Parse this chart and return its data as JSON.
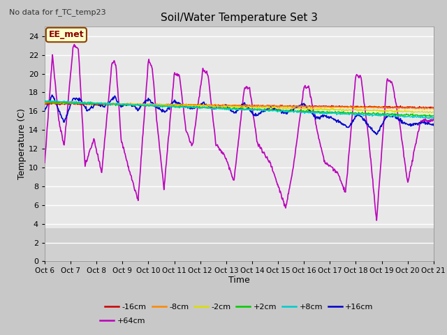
{
  "title": "Soil/Water Temperature Set 3",
  "no_data_text": "No data for f_TC_temp23",
  "xlabel": "Time",
  "ylabel": "Temperature (C)",
  "ylim": [
    0,
    25
  ],
  "yticks": [
    0,
    2,
    4,
    6,
    8,
    10,
    12,
    14,
    16,
    18,
    20,
    22,
    24
  ],
  "xlim": [
    0,
    15
  ],
  "xtick_labels": [
    "Oct 6",
    "Oct 7",
    "Oct 8",
    "Oct 9",
    "Oct 10",
    "Oct 11",
    "Oct 12",
    "Oct 13",
    "Oct 14",
    "Oct 15",
    "Oct 16",
    "Oct 17",
    "Oct 18",
    "Oct 19",
    "Oct 20",
    "Oct 21"
  ],
  "fig_bg_color": "#c8c8c8",
  "plot_bg_color": "#e8e8e8",
  "grid_color": "#ffffff",
  "legend_label_box": "EE_met",
  "series": [
    {
      "label": "-16cm",
      "color": "#cc0000"
    },
    {
      "label": "-8cm",
      "color": "#ff8800"
    },
    {
      "label": "-2cm",
      "color": "#dddd00"
    },
    {
      "label": "+2cm",
      "color": "#00cc00"
    },
    {
      "label": "+8cm",
      "color": "#00cccc"
    },
    {
      "label": "+16cm",
      "color": "#0000cc"
    },
    {
      "label": "+64cm",
      "color": "#bb00bb"
    }
  ],
  "purple_peaks": [
    [
      0.0,
      10.5
    ],
    [
      0.3,
      22.0
    ],
    [
      0.55,
      14.8
    ],
    [
      0.75,
      12.3
    ],
    [
      1.1,
      23.0
    ],
    [
      1.3,
      22.6
    ],
    [
      1.55,
      10.2
    ],
    [
      1.9,
      13.0
    ],
    [
      2.2,
      9.5
    ],
    [
      2.6,
      21.3
    ],
    [
      2.75,
      21.0
    ],
    [
      2.95,
      13.0
    ],
    [
      3.3,
      9.3
    ],
    [
      3.6,
      6.5
    ],
    [
      4.0,
      21.5
    ],
    [
      4.15,
      20.6
    ],
    [
      4.35,
      14.2
    ],
    [
      4.6,
      7.7
    ],
    [
      5.0,
      20.0
    ],
    [
      5.2,
      19.8
    ],
    [
      5.45,
      14.0
    ],
    [
      5.7,
      12.2
    ],
    [
      6.1,
      20.5
    ],
    [
      6.3,
      19.9
    ],
    [
      6.6,
      12.5
    ],
    [
      7.0,
      11.0
    ],
    [
      7.3,
      8.5
    ],
    [
      7.7,
      18.5
    ],
    [
      7.9,
      18.5
    ],
    [
      8.2,
      12.6
    ],
    [
      8.7,
      10.5
    ],
    [
      9.3,
      5.7
    ],
    [
      9.6,
      10.2
    ],
    [
      10.0,
      18.6
    ],
    [
      10.2,
      18.5
    ],
    [
      10.5,
      14.0
    ],
    [
      10.8,
      10.5
    ],
    [
      11.3,
      9.5
    ],
    [
      11.6,
      7.2
    ],
    [
      12.0,
      19.9
    ],
    [
      12.2,
      19.6
    ],
    [
      12.5,
      13.0
    ],
    [
      12.8,
      4.3
    ],
    [
      13.2,
      19.3
    ],
    [
      13.4,
      19.1
    ],
    [
      13.7,
      14.5
    ],
    [
      14.0,
      8.3
    ],
    [
      14.5,
      15.0
    ],
    [
      15.0,
      15.0
    ]
  ],
  "blue_peaks": [
    [
      0.0,
      16.1
    ],
    [
      0.3,
      17.7
    ],
    [
      0.55,
      16.0
    ],
    [
      0.75,
      14.8
    ],
    [
      1.1,
      17.4
    ],
    [
      1.4,
      17.2
    ],
    [
      1.65,
      16.0
    ],
    [
      2.0,
      16.8
    ],
    [
      2.3,
      16.5
    ],
    [
      2.7,
      17.5
    ],
    [
      2.95,
      16.5
    ],
    [
      3.3,
      16.8
    ],
    [
      3.6,
      16.2
    ],
    [
      4.0,
      17.3
    ],
    [
      4.35,
      16.3
    ],
    [
      4.65,
      15.9
    ],
    [
      5.0,
      17.1
    ],
    [
      5.35,
      16.5
    ],
    [
      5.7,
      16.3
    ],
    [
      6.1,
      16.9
    ],
    [
      6.45,
      16.3
    ],
    [
      7.0,
      16.6
    ],
    [
      7.3,
      15.8
    ],
    [
      7.7,
      16.8
    ],
    [
      8.1,
      15.5
    ],
    [
      8.7,
      16.4
    ],
    [
      9.3,
      15.8
    ],
    [
      9.7,
      16.4
    ],
    [
      10.0,
      16.8
    ],
    [
      10.45,
      15.3
    ],
    [
      10.8,
      15.5
    ],
    [
      11.3,
      15.0
    ],
    [
      11.7,
      14.2
    ],
    [
      12.1,
      15.8
    ],
    [
      12.4,
      14.8
    ],
    [
      12.8,
      13.5
    ],
    [
      13.2,
      15.5
    ],
    [
      13.5,
      15.5
    ],
    [
      13.8,
      14.8
    ],
    [
      14.1,
      14.5
    ],
    [
      14.6,
      14.8
    ],
    [
      15.0,
      14.5
    ]
  ]
}
